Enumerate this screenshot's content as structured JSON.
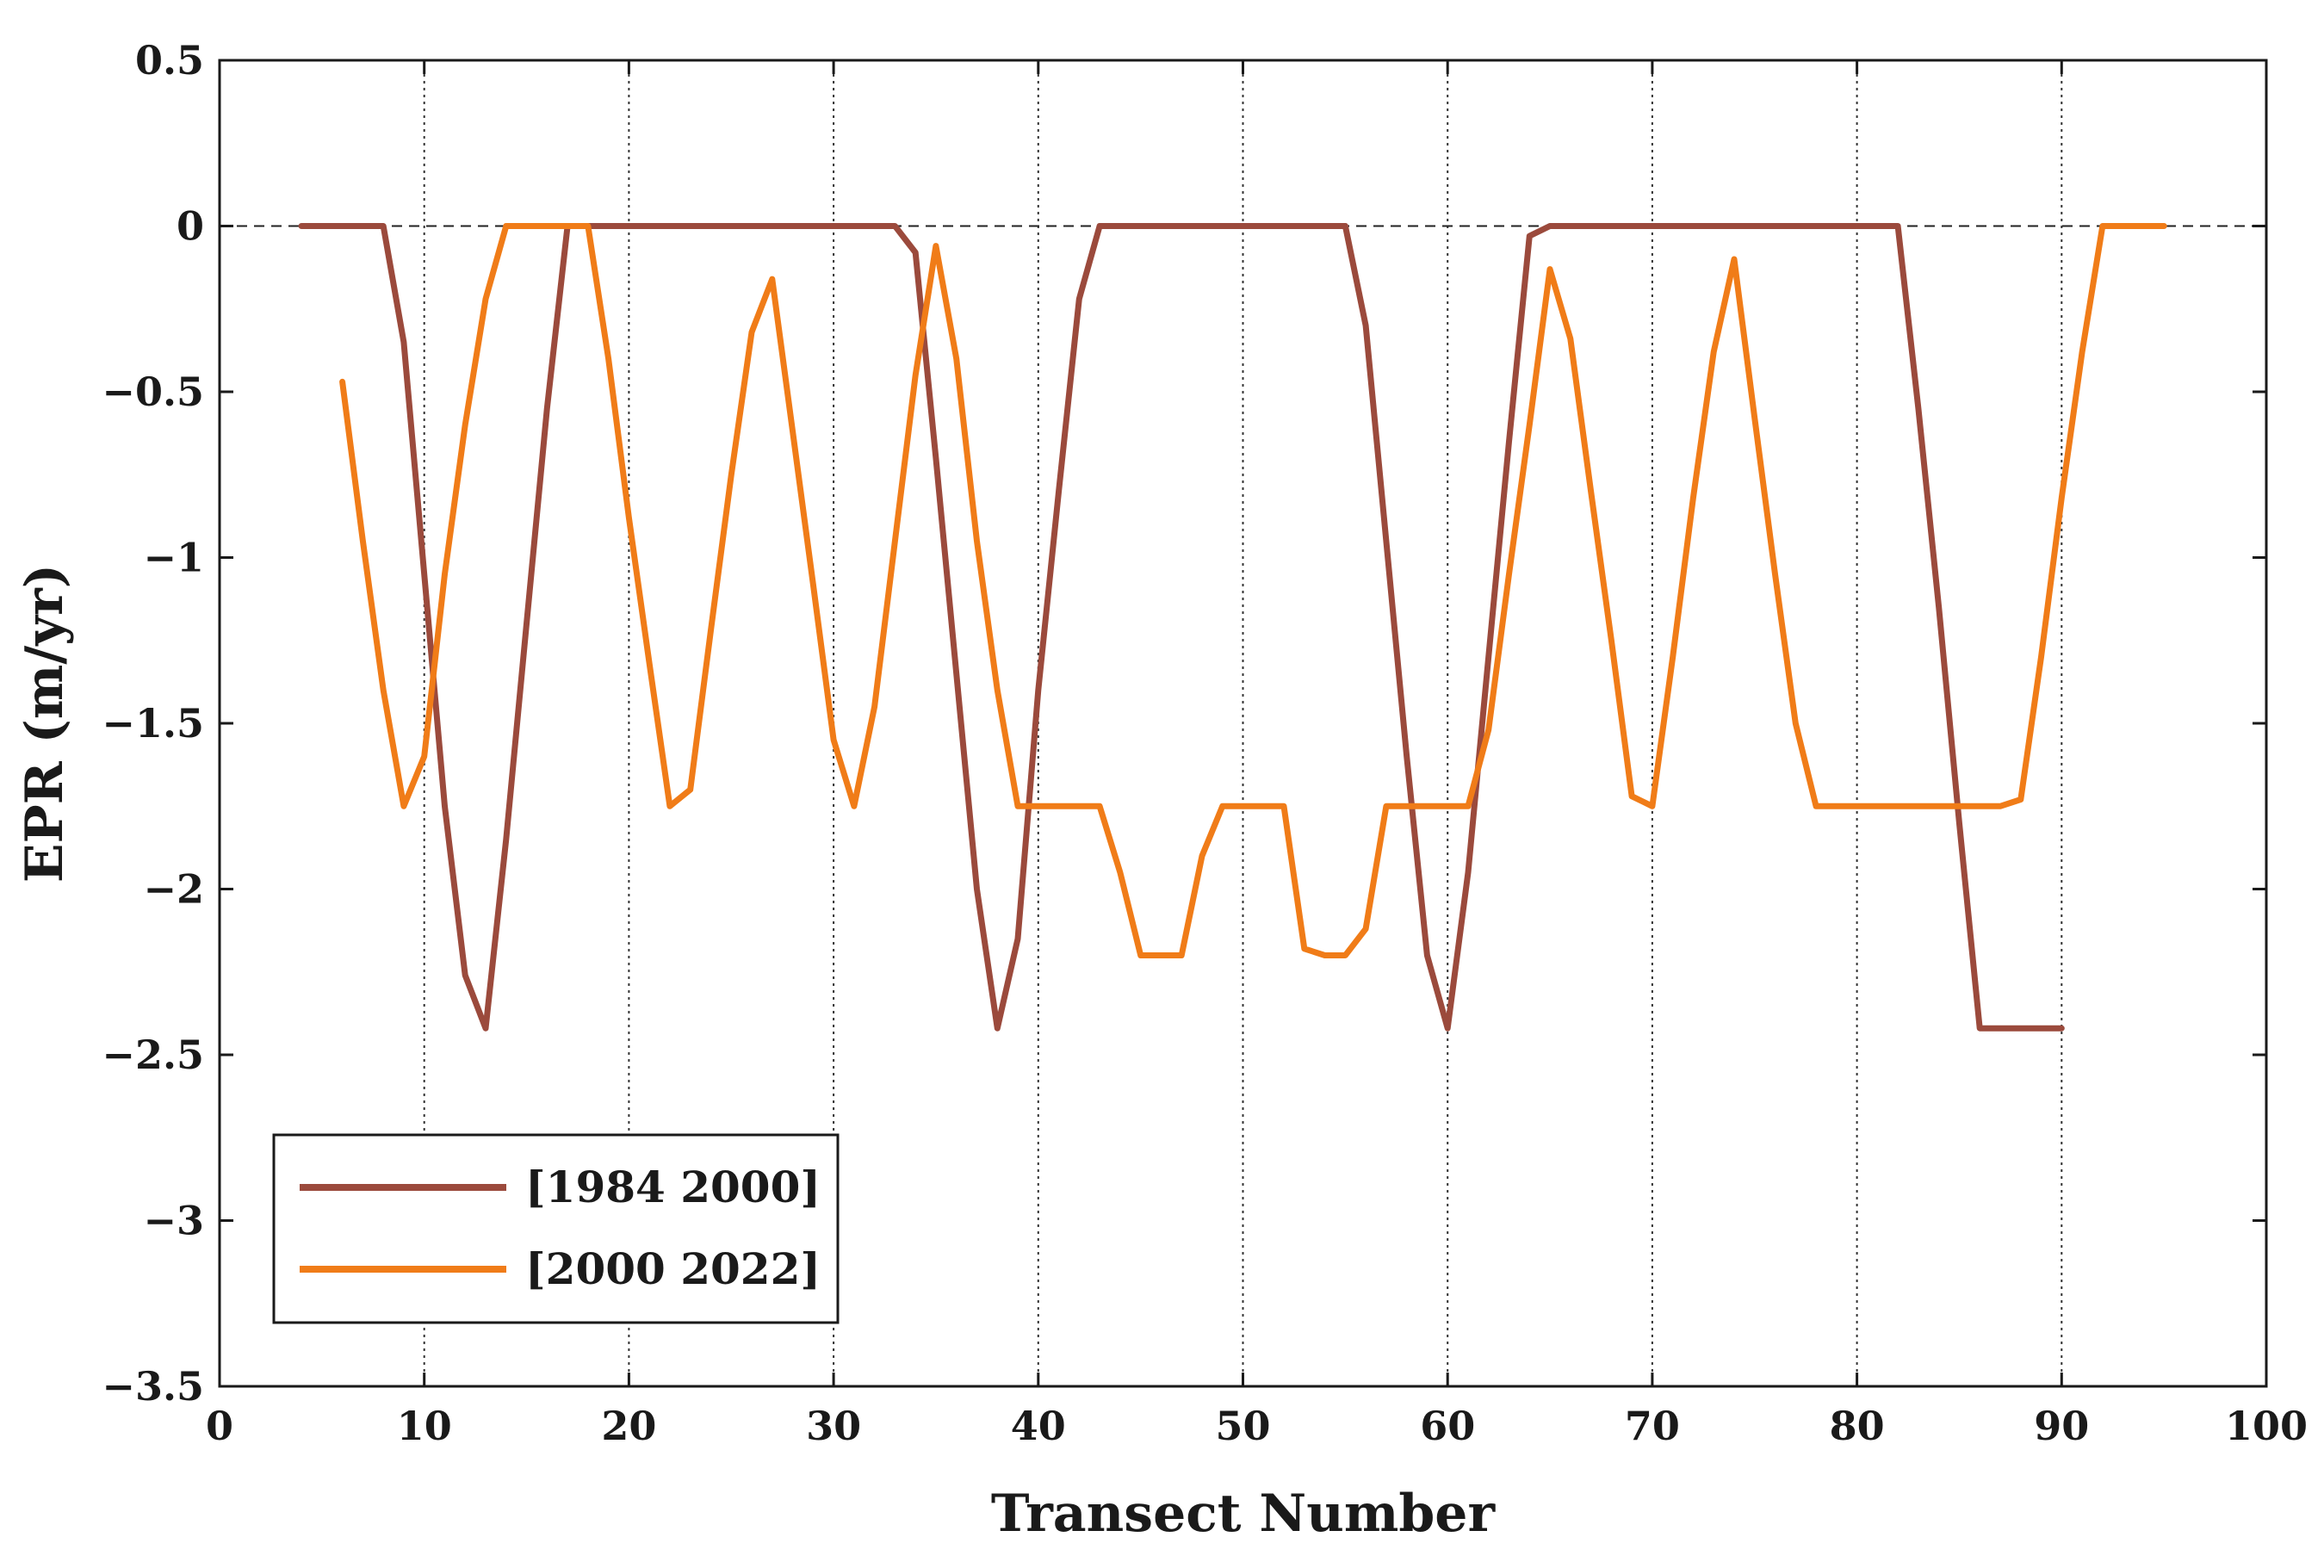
{
  "chart_data": {
    "type": "line",
    "title": "",
    "xlabel": "Transect Number",
    "ylabel": "EPR (m/yr)",
    "xlim": [
      0,
      100
    ],
    "ylim": [
      -3.5,
      0.5
    ],
    "xticks": [
      0,
      10,
      20,
      30,
      40,
      50,
      60,
      70,
      80,
      90,
      100
    ],
    "yticks": [
      0.5,
      0,
      -0.5,
      -1,
      -1.5,
      -2,
      -2.5,
      -3,
      -3.5
    ],
    "xtick_labels": [
      "0",
      "10",
      "20",
      "30",
      "40",
      "50",
      "60",
      "70",
      "80",
      "90",
      "100"
    ],
    "ytick_labels": [
      "0.5",
      "0",
      "−0.5",
      "−1",
      "−1.5",
      "−2",
      "−2.5",
      "−3",
      "−3.5"
    ],
    "grid": "vertical dotted lines at x ticks; dashed horizontal line at y = 0",
    "legend_position": "bottom-left",
    "series": [
      {
        "name": "[1984 2000]",
        "color": "#9b4a3c",
        "x": [
          4,
          5,
          6,
          7,
          8,
          9,
          10,
          11,
          12,
          13,
          14,
          15,
          16,
          17,
          18,
          19,
          20,
          21,
          22,
          23,
          24,
          25,
          26,
          27,
          28,
          29,
          30,
          31,
          32,
          33,
          34,
          35,
          36,
          37,
          38,
          39,
          40,
          41,
          42,
          43,
          44,
          45,
          46,
          47,
          48,
          49,
          50,
          51,
          52,
          53,
          54,
          55,
          56,
          57,
          58,
          59,
          60,
          61,
          62,
          63,
          64,
          65,
          66,
          67,
          68,
          69,
          70,
          71,
          72,
          73,
          74,
          75,
          76,
          77,
          78,
          79,
          80,
          81,
          82,
          83,
          84,
          85,
          86,
          87,
          88,
          89,
          90
        ],
        "y": [
          0,
          0,
          0,
          0,
          0,
          -0.35,
          -1.05,
          -1.75,
          -2.26,
          -2.42,
          -1.85,
          -1.2,
          -0.55,
          0,
          0,
          0,
          0,
          0,
          0,
          0,
          0,
          0,
          0,
          0,
          0,
          0,
          0,
          0,
          0,
          0,
          -0.08,
          -0.7,
          -1.35,
          -2.0,
          -2.42,
          -2.15,
          -1.4,
          -0.8,
          -0.22,
          0,
          0,
          0,
          0,
          0,
          0,
          0,
          0,
          0,
          0,
          0,
          0,
          0,
          -0.3,
          -0.95,
          -1.6,
          -2.2,
          -2.42,
          -1.95,
          -1.3,
          -0.65,
          -0.03,
          0,
          0,
          0,
          0,
          0,
          0,
          0,
          0,
          0,
          0,
          0,
          0,
          0,
          0,
          0,
          0,
          0,
          0,
          -0.55,
          -1.15,
          -1.8,
          -2.42,
          -2.42,
          -2.42,
          -2.42,
          -2.42
        ]
      },
      {
        "name": "[2000 2022]",
        "color": "#f07c18",
        "x": [
          6,
          7,
          8,
          9,
          10,
          11,
          12,
          13,
          14,
          15,
          16,
          17,
          18,
          19,
          20,
          21,
          22,
          23,
          24,
          25,
          26,
          27,
          28,
          29,
          30,
          31,
          32,
          33,
          34,
          35,
          36,
          37,
          38,
          39,
          40,
          41,
          42,
          43,
          44,
          45,
          46,
          47,
          48,
          49,
          50,
          51,
          52,
          53,
          54,
          55,
          56,
          57,
          58,
          59,
          60,
          61,
          62,
          63,
          64,
          65,
          66,
          67,
          68,
          69,
          70,
          71,
          72,
          73,
          74,
          75,
          76,
          77,
          78,
          79,
          80,
          81,
          82,
          83,
          84,
          85,
          86,
          87,
          88,
          89,
          90,
          91,
          92,
          93,
          94,
          95
        ],
        "y": [
          -0.47,
          -0.95,
          -1.4,
          -1.75,
          -1.6,
          -1.05,
          -0.6,
          -0.22,
          0,
          0,
          0,
          0,
          0,
          -0.4,
          -0.88,
          -1.32,
          -1.75,
          -1.7,
          -1.22,
          -0.75,
          -0.32,
          -0.16,
          -0.62,
          -1.08,
          -1.55,
          -1.75,
          -1.45,
          -0.95,
          -0.45,
          -0.06,
          -0.4,
          -0.95,
          -1.4,
          -1.75,
          -1.75,
          -1.75,
          -1.75,
          -1.75,
          -1.95,
          -2.2,
          -2.2,
          -2.2,
          -1.9,
          -1.75,
          -1.75,
          -1.75,
          -1.75,
          -2.18,
          -2.2,
          -2.2,
          -2.12,
          -1.75,
          -1.75,
          -1.75,
          -1.75,
          -1.75,
          -1.52,
          -1.05,
          -0.6,
          -0.13,
          -0.34,
          -0.8,
          -1.25,
          -1.72,
          -1.75,
          -1.3,
          -0.82,
          -0.38,
          -0.1,
          -0.58,
          -1.05,
          -1.5,
          -1.75,
          -1.75,
          -1.75,
          -1.75,
          -1.75,
          -1.75,
          -1.75,
          -1.75,
          -1.75,
          -1.75,
          -1.73,
          -1.3,
          -0.82,
          -0.38,
          0,
          0,
          0,
          0
        ]
      }
    ]
  }
}
